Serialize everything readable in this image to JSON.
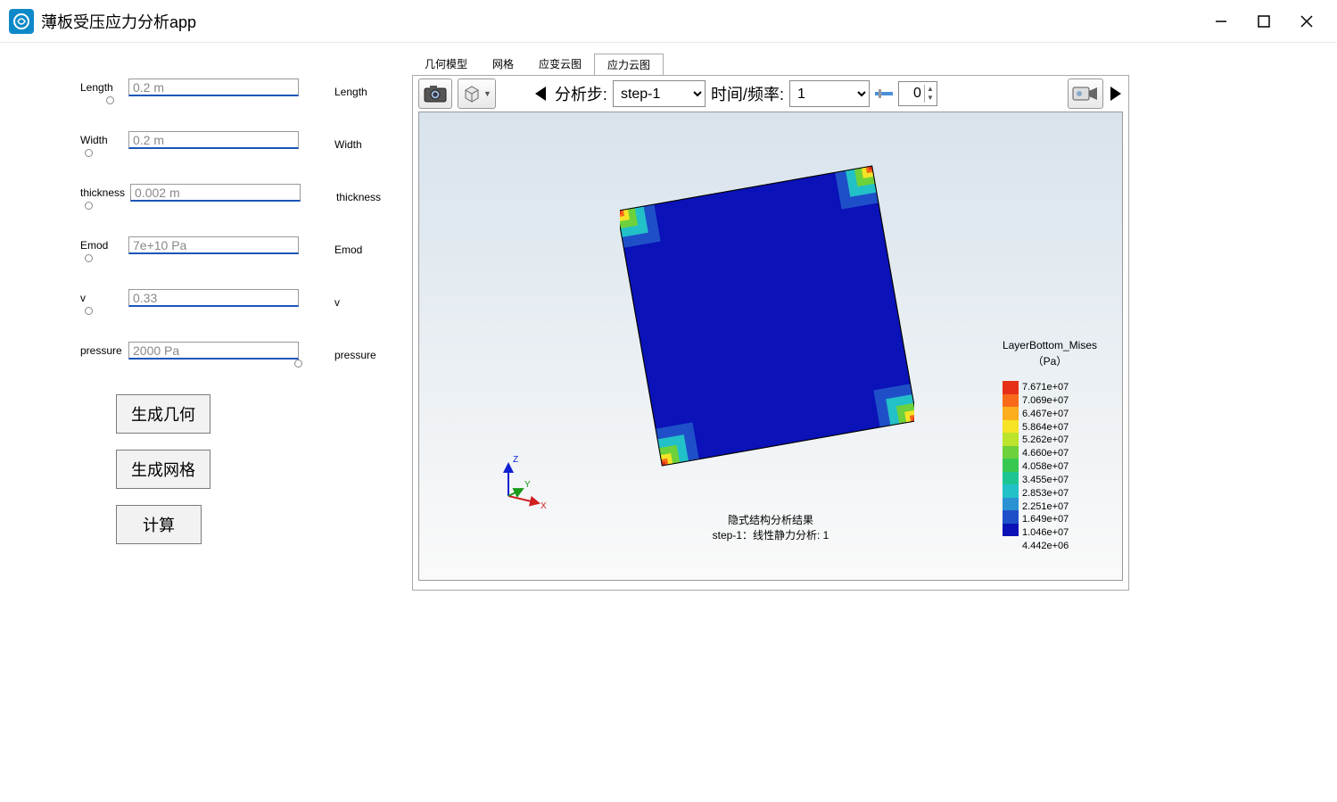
{
  "app": {
    "title": "薄板受压应力分析app"
  },
  "params": [
    {
      "key": "length",
      "label": "Length",
      "value": "0.2 m",
      "name": "Length",
      "thumb": 12
    },
    {
      "key": "width",
      "label": "Width",
      "value": "0.2 m",
      "name": "Width",
      "thumb": 2
    },
    {
      "key": "thickness",
      "label": "thickness",
      "value": "0.002 m",
      "name": "thickness",
      "thumb": 2
    },
    {
      "key": "emod",
      "label": "Emod",
      "value": "7e+10 Pa",
      "name": "Emod",
      "thumb": 2
    },
    {
      "key": "v",
      "label": "v",
      "value": "0.33",
      "name": "v",
      "thumb": 2
    },
    {
      "key": "pressure",
      "label": "pressure",
      "value": "2000 Pa",
      "name": "pressure",
      "thumb": 98
    }
  ],
  "buttons": {
    "geom": "生成几何",
    "mesh": "生成网格",
    "calc": "计算"
  },
  "tabs": {
    "items": [
      "几何模型",
      "网格",
      "应变云图",
      "应力云图"
    ],
    "active": 3
  },
  "toolbar": {
    "analysis_step_label": "分析步:",
    "step_value": "step-1",
    "time_freq_label": "时间/频率:",
    "time_freq_value": "1",
    "spinner_value": "0"
  },
  "legend": {
    "title": "LayerBottom_Mises",
    "unit": "（Pa）",
    "colors": [
      "#e53017",
      "#f86a1a",
      "#fcae1d",
      "#f5e425",
      "#bce42c",
      "#6dd13b",
      "#38c84f",
      "#1ec593",
      "#22c1c8",
      "#2a92d3",
      "#1f4fc8",
      "#0a12b5"
    ],
    "values": [
      "7.671e+07",
      "7.069e+07",
      "6.467e+07",
      "5.864e+07",
      "5.262e+07",
      "4.660e+07",
      "4.058e+07",
      "3.455e+07",
      "2.853e+07",
      "2.251e+07",
      "1.649e+07",
      "1.046e+07",
      "4.442e+06"
    ]
  },
  "result": {
    "line1": "隐式结构分析结果",
    "line2": "step-1：线性静力分析: 1"
  },
  "axes": {
    "x": "X",
    "y": "Y",
    "z": "Z"
  },
  "colors": {
    "plate_base": "#0a12b8",
    "window_border": "#aaaaaa"
  }
}
